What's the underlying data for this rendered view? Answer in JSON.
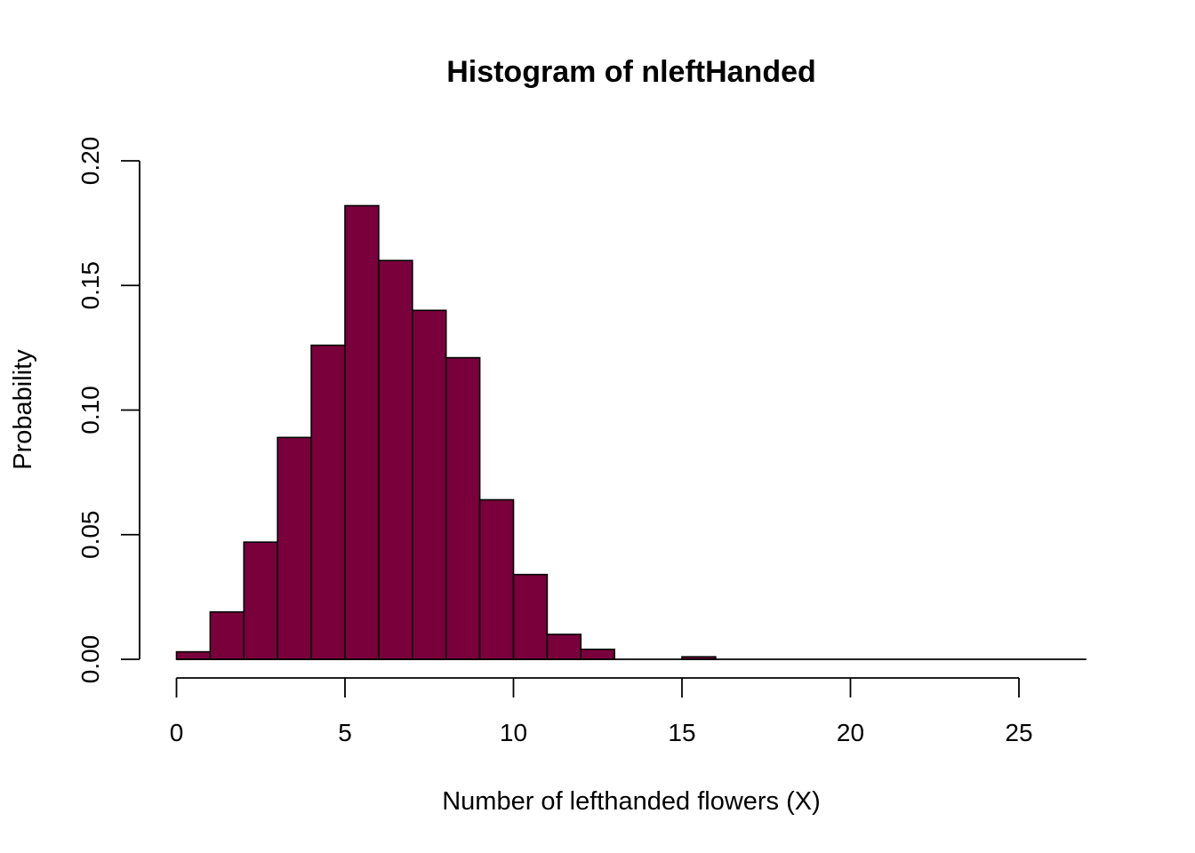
{
  "chart_data": {
    "type": "bar",
    "title": "Histogram of nleftHanded",
    "xlabel": "Number of lefthanded flowers (X)",
    "ylabel": "Probability",
    "bin_edges": [
      0,
      1,
      2,
      3,
      4,
      5,
      6,
      7,
      8,
      9,
      10,
      11,
      12,
      13,
      14,
      15,
      16,
      17,
      18,
      19,
      20,
      21,
      22,
      23,
      24,
      25,
      26,
      27
    ],
    "values": [
      0.003,
      0.019,
      0.047,
      0.089,
      0.126,
      0.182,
      0.16,
      0.14,
      0.121,
      0.064,
      0.034,
      0.01,
      0.004,
      0,
      0,
      0.001,
      0,
      0,
      0,
      0,
      0,
      0,
      0,
      0,
      0,
      0,
      0
    ],
    "xlim": [
      0,
      27
    ],
    "ylim": [
      0,
      0.2
    ],
    "x_ticks": [
      "0",
      "5",
      "10",
      "15",
      "20",
      "25"
    ],
    "y_ticks": [
      "0.00",
      "0.05",
      "0.10",
      "0.15",
      "0.20"
    ],
    "bar_color": "#7a003c",
    "grid": false,
    "legend": "none"
  }
}
